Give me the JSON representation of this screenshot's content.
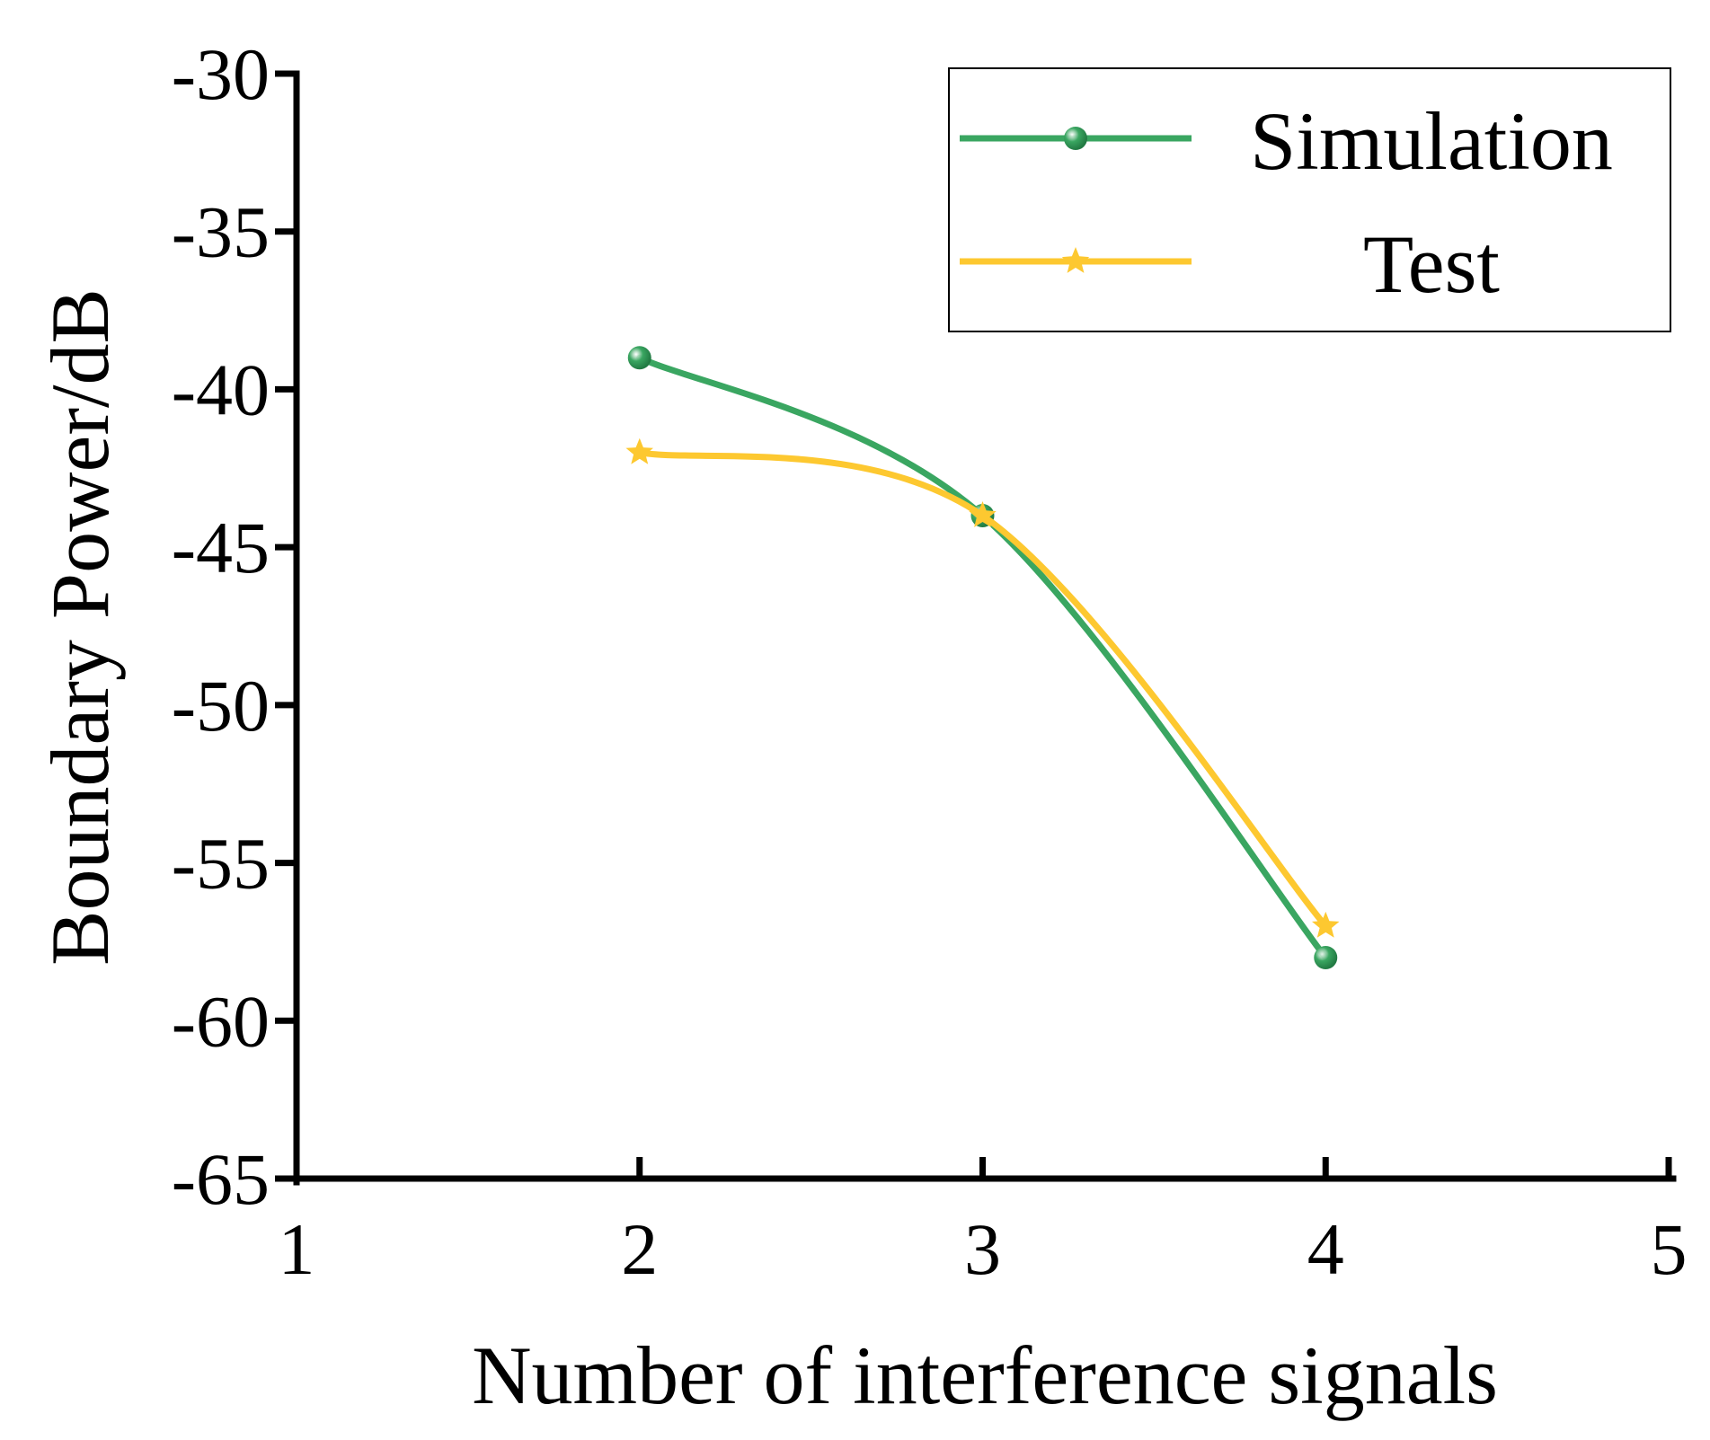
{
  "chart_data": {
    "type": "line",
    "title": "",
    "xlabel": "Number of interference signals",
    "ylabel": "Boundary Power/dB",
    "xlim": [
      1,
      5
    ],
    "ylim": [
      -65,
      -30
    ],
    "xticks": [
      1,
      2,
      3,
      4,
      5
    ],
    "yticks": [
      -30,
      -35,
      -40,
      -45,
      -50,
      -55,
      -60,
      -65
    ],
    "xtick_labels": [
      "1",
      "2",
      "3",
      "4",
      "5"
    ],
    "ytick_labels": [
      "-30",
      "-35",
      "-40",
      "-45",
      "-50",
      "-55",
      "-60",
      "-65"
    ],
    "grid": false,
    "smooth": true,
    "legend_position": "top-right",
    "series": [
      {
        "name": "Simulation",
        "color": "#3aa661",
        "marker": "circle",
        "x": [
          2,
          3,
          4
        ],
        "y": [
          -39,
          -44,
          -58
        ]
      },
      {
        "name": "Test",
        "color": "#fdc830",
        "marker": "star",
        "x": [
          2,
          3,
          4
        ],
        "y": [
          -42,
          -44,
          -57
        ]
      }
    ]
  }
}
